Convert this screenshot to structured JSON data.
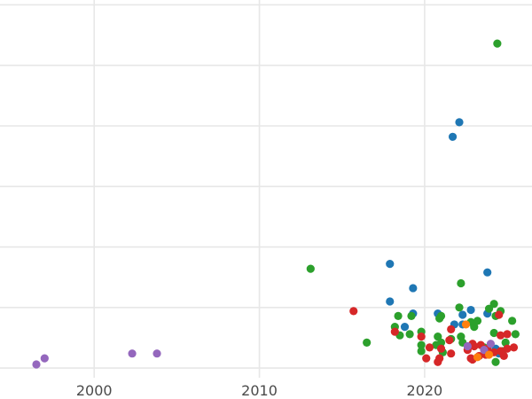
{
  "chart_data": {
    "type": "scatter",
    "title": "",
    "xlabel": "",
    "ylabel": "",
    "xlim": [
      1994.3,
      2026.5
    ],
    "ylim": [
      -0.8,
      30.4
    ],
    "xticks": [
      {
        "value": 2000,
        "label": "2000"
      },
      {
        "value": 2010,
        "label": "2010"
      },
      {
        "value": 2020,
        "label": "2020"
      }
    ],
    "ygrid": [
      0,
      5,
      10,
      15,
      20,
      25,
      30
    ],
    "grid": {
      "x": true,
      "y": true
    },
    "legend": "none",
    "series": [
      {
        "color": "#1f77b4",
        "points": [
          [
            2022.1,
            20.3
          ],
          [
            2021.7,
            19.1
          ],
          [
            2017.9,
            8.6
          ],
          [
            2023.8,
            7.9
          ],
          [
            2019.3,
            6.6
          ],
          [
            2017.9,
            5.5
          ],
          [
            2019.3,
            4.5
          ],
          [
            2020.8,
            4.5
          ],
          [
            2022.8,
            4.8
          ],
          [
            2023.8,
            4.5
          ],
          [
            2022.3,
            4.4
          ],
          [
            2018.8,
            3.4
          ],
          [
            2021.8,
            3.6
          ],
          [
            2022.3,
            3.6
          ],
          [
            2024.3,
            1.6
          ],
          [
            2024.5,
            1.2
          ]
        ]
      },
      {
        "color": "#2ca02c",
        "points": [
          [
            2024.4,
            26.8
          ],
          [
            2013.1,
            8.2
          ],
          [
            2022.2,
            7.0
          ],
          [
            2024.2,
            5.3
          ],
          [
            2023.9,
            4.9
          ],
          [
            2022.1,
            5.0
          ],
          [
            2024.6,
            4.7
          ],
          [
            2018.4,
            4.3
          ],
          [
            2019.2,
            4.3
          ],
          [
            2020.9,
            4.1
          ],
          [
            2021.0,
            4.3
          ],
          [
            2024.3,
            4.3
          ],
          [
            2025.3,
            3.9
          ],
          [
            2023.2,
            3.9
          ],
          [
            2022.8,
            3.8
          ],
          [
            2018.2,
            3.4
          ],
          [
            2019.8,
            3.0
          ],
          [
            2019.1,
            2.8
          ],
          [
            2018.5,
            2.7
          ],
          [
            2022.2,
            2.6
          ],
          [
            2020.8,
            2.6
          ],
          [
            2021.6,
            2.4
          ],
          [
            2024.2,
            2.9
          ],
          [
            2025.5,
            2.8
          ],
          [
            2016.5,
            2.1
          ],
          [
            2019.8,
            1.9
          ],
          [
            2020.7,
            1.9
          ],
          [
            2021.0,
            2.1
          ],
          [
            2022.3,
            2.1
          ],
          [
            2023.0,
            3.4
          ],
          [
            2024.9,
            2.1
          ],
          [
            2019.8,
            1.4
          ],
          [
            2021.1,
            1.3
          ],
          [
            2023.6,
            1.7
          ],
          [
            2024.3,
            0.5
          ],
          [
            2024.7,
            1.4
          ]
        ]
      },
      {
        "color": "#d62728",
        "points": [
          [
            2015.7,
            4.7
          ],
          [
            2024.5,
            4.4
          ],
          [
            2021.6,
            3.2
          ],
          [
            2018.2,
            3.0
          ],
          [
            2019.8,
            2.6
          ],
          [
            2024.6,
            2.7
          ],
          [
            2025.0,
            2.8
          ],
          [
            2021.5,
            2.3
          ],
          [
            2022.9,
            2.0
          ],
          [
            2023.4,
            1.9
          ],
          [
            2020.3,
            1.7
          ],
          [
            2021.0,
            1.6
          ],
          [
            2022.6,
            1.5
          ],
          [
            2023.0,
            1.8
          ],
          [
            2023.8,
            1.6
          ],
          [
            2024.6,
            1.4
          ],
          [
            2025.0,
            1.6
          ],
          [
            2025.4,
            1.7
          ],
          [
            2021.6,
            1.2
          ],
          [
            2023.3,
            1.0
          ],
          [
            2020.1,
            0.8
          ],
          [
            2020.9,
            0.8
          ],
          [
            2022.8,
            0.8
          ],
          [
            2023.7,
            1.1
          ],
          [
            2024.2,
            1.3
          ],
          [
            2024.8,
            1.0
          ],
          [
            2020.8,
            0.5
          ],
          [
            2022.9,
            0.7
          ]
        ]
      },
      {
        "color": "#9467bd",
        "points": [
          [
            1996.5,
            0.3
          ],
          [
            1997.0,
            0.8
          ],
          [
            2002.3,
            1.2
          ],
          [
            2003.8,
            1.2
          ],
          [
            2022.6,
            1.8
          ],
          [
            2023.6,
            1.5
          ],
          [
            2024.0,
            2.0
          ]
        ]
      },
      {
        "color": "#ff7f0e",
        "points": [
          [
            2023.2,
            0.9
          ],
          [
            2023.9,
            1.1
          ],
          [
            2022.5,
            3.6
          ]
        ]
      }
    ]
  }
}
